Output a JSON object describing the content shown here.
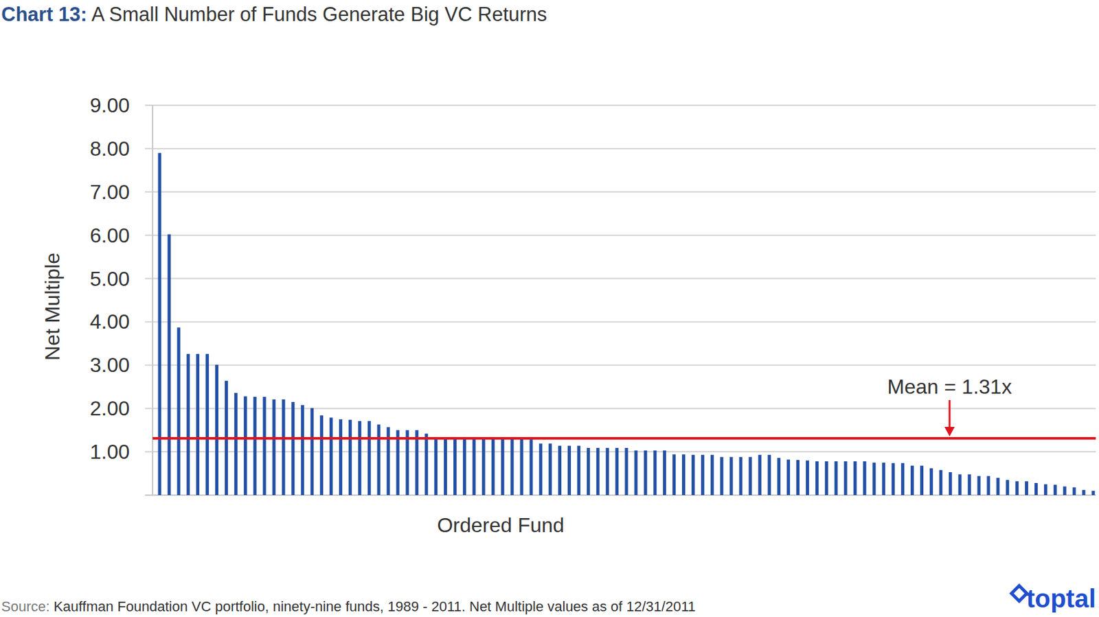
{
  "chart_data": {
    "type": "bar",
    "title": "Chart 13: A Small Number of Funds Generate Big VC Returns",
    "y_label": "Net Multiple",
    "x_label": "Ordered Fund",
    "source": "Source: Kauffman Foundation VC portfolio, ninety-nine funds, 1989 - 2011. Net Multiple values as of 12/31/2011",
    "logo": "toptal",
    "categories": [
      null,
      null,
      null,
      null,
      null,
      null,
      null,
      null,
      null,
      null,
      null,
      null,
      null,
      null,
      null,
      null,
      null,
      null,
      null,
      null,
      null,
      null,
      null,
      null,
      null,
      null,
      null,
      null,
      null,
      null,
      null,
      null,
      null,
      null,
      null,
      null,
      null,
      null,
      null,
      null,
      null,
      null,
      null,
      null,
      null,
      null,
      null,
      null,
      null,
      null,
      null,
      null,
      null,
      null,
      null,
      null,
      null,
      null,
      null,
      null,
      null,
      null,
      null,
      null,
      null,
      null,
      null,
      null,
      null,
      null,
      null,
      null,
      null,
      null,
      null,
      null,
      null,
      null,
      null,
      null,
      null,
      null,
      null,
      null,
      null,
      null,
      null,
      null,
      null,
      null,
      null,
      null,
      null,
      null,
      null,
      null,
      null,
      null,
      null
    ],
    "values": [
      7.9,
      6.02,
      3.87,
      3.26,
      3.26,
      3.26,
      3.01,
      2.64,
      2.36,
      2.28,
      2.27,
      2.27,
      2.21,
      2.21,
      2.15,
      2.08,
      2.01,
      1.84,
      1.79,
      1.75,
      1.74,
      1.71,
      1.71,
      1.63,
      1.57,
      1.5,
      1.5,
      1.5,
      1.42,
      1.33,
      1.32,
      1.31,
      1.31,
      1.3,
      1.3,
      1.29,
      1.29,
      1.29,
      1.29,
      1.28,
      1.19,
      1.19,
      1.14,
      1.14,
      1.14,
      1.09,
      1.09,
      1.09,
      1.09,
      1.09,
      1.03,
      1.03,
      1.03,
      1.03,
      0.94,
      0.94,
      0.93,
      0.93,
      0.93,
      0.88,
      0.88,
      0.88,
      0.88,
      0.93,
      0.93,
      0.86,
      0.82,
      0.81,
      0.8,
      0.78,
      0.78,
      0.78,
      0.78,
      0.78,
      0.78,
      0.75,
      0.75,
      0.74,
      0.74,
      0.68,
      0.68,
      0.62,
      0.58,
      0.53,
      0.48,
      0.48,
      0.44,
      0.44,
      0.4,
      0.35,
      0.32,
      0.32,
      0.28,
      0.25,
      0.24,
      0.2,
      0.18,
      0.12,
      0.1
    ],
    "color": "#2350a5",
    "ylim": [
      0,
      9
    ],
    "yticks": [
      {
        "value": 1,
        "label": "1.00"
      },
      {
        "value": 2,
        "label": "2.00"
      },
      {
        "value": 3,
        "label": "3.00"
      },
      {
        "value": 4,
        "label": "4.00"
      },
      {
        "value": 5,
        "label": "5.00"
      },
      {
        "value": 6,
        "label": "6.00"
      },
      {
        "value": 7,
        "label": "7.00"
      },
      {
        "value": 8,
        "label": "8.00"
      },
      {
        "value": 9,
        "label": "9.00"
      }
    ],
    "grid": true,
    "tick_labels": "y",
    "mean_line": {
      "label": "Mean = 1.31x",
      "value": 1.31,
      "color": "#e0141e"
    }
  }
}
